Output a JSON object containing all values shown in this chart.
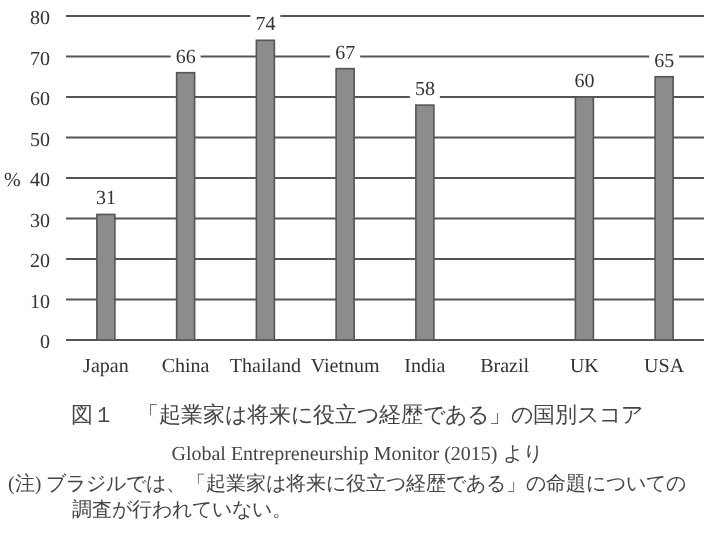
{
  "chart_data": {
    "type": "bar",
    "title": "図１　「起業家は将来に役立つ経歴である」の国別スコア",
    "categories": [
      "Japan",
      "China",
      "Thailand",
      "Vietnum",
      "India",
      "Brazil",
      "UK",
      "USA"
    ],
    "values": [
      31,
      66,
      74,
      67,
      58,
      null,
      60,
      65
    ],
    "color": "#8c8c8c",
    "ylabel": "%",
    "ylim": [
      0,
      80
    ],
    "yticks": [
      0,
      10,
      20,
      30,
      40,
      50,
      60,
      70,
      80
    ],
    "grid": "y",
    "data_labels": true,
    "annotations": [
      "Global Entrepreneurship Monitor (2015) より",
      "(注) ブラジルでは、「起業家は将来に役立つ経歴である」の命題についての調査が行われていない。"
    ]
  }
}
